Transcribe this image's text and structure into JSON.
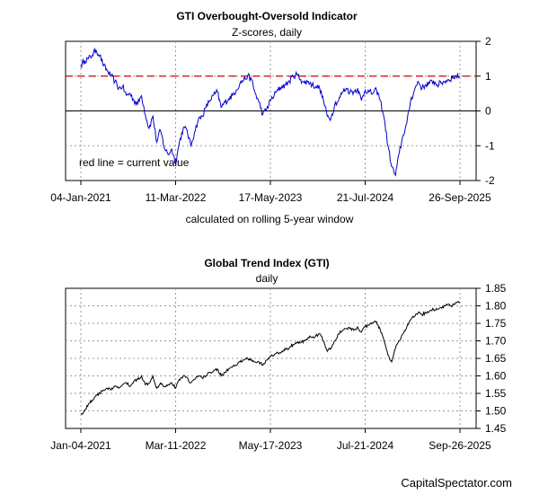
{
  "chart_data": [
    {
      "type": "line",
      "title": "GTI Overbought-Oversold Indicator",
      "subtitle": "Z-scores, daily",
      "xlabel": "calculated on rolling 5-year window",
      "ylabel": "",
      "ylim": [
        -2,
        2
      ],
      "yticks": [
        2,
        1,
        0,
        -1,
        -2
      ],
      "xticks": [
        "04-Jan-2021",
        "11-Mar-2022",
        "17-May-2023",
        "21-Jul-2024",
        "26-Sep-2025"
      ],
      "reference_line": {
        "value": 1,
        "color": "#e00000",
        "style": "dashed"
      },
      "zero_line": {
        "value": 0,
        "color": "#000000"
      },
      "annotation": "red line = current value",
      "grid": true,
      "series": [
        {
          "name": "GTI z-score",
          "color": "#0000cc",
          "x_frac": [
            0,
            0.01,
            0.02,
            0.03,
            0.04,
            0.05,
            0.06,
            0.07,
            0.08,
            0.09,
            0.1,
            0.11,
            0.12,
            0.13,
            0.14,
            0.15,
            0.16,
            0.17,
            0.18,
            0.19,
            0.2,
            0.21,
            0.22,
            0.23,
            0.24,
            0.25,
            0.26,
            0.27,
            0.28,
            0.29,
            0.3,
            0.31,
            0.32,
            0.33,
            0.34,
            0.35,
            0.36,
            0.37,
            0.38,
            0.39,
            0.4,
            0.41,
            0.42,
            0.43,
            0.44,
            0.45,
            0.46,
            0.47,
            0.48,
            0.49,
            0.5,
            0.51,
            0.52,
            0.53,
            0.54,
            0.55,
            0.56,
            0.57,
            0.58,
            0.59,
            0.6,
            0.61,
            0.62,
            0.63,
            0.64,
            0.65,
            0.66,
            0.67,
            0.68,
            0.69,
            0.7,
            0.71,
            0.72,
            0.73,
            0.74,
            0.75,
            0.76,
            0.77,
            0.78,
            0.79,
            0.8,
            0.81,
            0.82,
            0.83,
            0.84,
            0.85,
            0.86,
            0.87,
            0.88,
            0.89,
            0.9,
            0.91,
            0.92,
            0.93,
            0.94,
            0.95,
            0.96,
            0.97,
            0.98,
            0.99,
            1
          ],
          "values": [
            1.3,
            1.45,
            1.5,
            1.6,
            1.75,
            1.6,
            1.3,
            1.15,
            1.0,
            0.85,
            0.65,
            0.7,
            0.45,
            0.5,
            0.3,
            0.2,
            0.45,
            -0.1,
            -0.5,
            -0.15,
            -0.9,
            -0.55,
            -1.05,
            -1.25,
            -1.1,
            -1.5,
            -0.9,
            -0.5,
            -0.55,
            -1.0,
            -0.6,
            -0.25,
            -0.15,
            0.1,
            0.3,
            0.45,
            0.55,
            0.1,
            0.25,
            0.35,
            0.45,
            0.6,
            0.8,
            0.9,
            1.0,
            0.9,
            0.5,
            0.25,
            -0.1,
            0.05,
            0.3,
            0.45,
            0.6,
            0.7,
            0.75,
            0.85,
            1.0,
            1.05,
            0.9,
            0.8,
            0.85,
            0.75,
            0.7,
            0.65,
            0.3,
            -0.15,
            -0.2,
            0.2,
            0.3,
            0.55,
            0.65,
            0.55,
            0.55,
            0.65,
            0.3,
            0.6,
            0.55,
            0.5,
            0.6,
            0.3,
            -0.2,
            -1.0,
            -1.6,
            -1.85,
            -1.2,
            -0.7,
            -0.35,
            0.3,
            0.6,
            0.85,
            0.65,
            0.75,
            0.8,
            0.85,
            0.75,
            0.8,
            0.85,
            0.9,
            0.95,
            1.0,
            1.0
          ]
        }
      ]
    },
    {
      "type": "line",
      "title": "Global Trend Index (GTI)",
      "subtitle": "daily",
      "xlabel": "",
      "ylabel": "",
      "ylim": [
        1.45,
        1.85
      ],
      "yticks": [
        "1.85",
        "1.80",
        "1.75",
        "1.70",
        "1.65",
        "1.60",
        "1.55",
        "1.50",
        "1.45"
      ],
      "xticks": [
        "Jan-04-2021",
        "Mar-11-2022",
        "May-17-2023",
        "Jul-21-2024",
        "Sep-26-2025"
      ],
      "grid": true,
      "series": [
        {
          "name": "GTI",
          "color": "#000000",
          "x_frac": [
            0,
            0.01,
            0.02,
            0.03,
            0.04,
            0.05,
            0.06,
            0.07,
            0.08,
            0.09,
            0.1,
            0.11,
            0.12,
            0.13,
            0.14,
            0.15,
            0.16,
            0.17,
            0.18,
            0.19,
            0.2,
            0.21,
            0.22,
            0.23,
            0.24,
            0.25,
            0.26,
            0.27,
            0.28,
            0.29,
            0.3,
            0.31,
            0.32,
            0.33,
            0.34,
            0.35,
            0.36,
            0.37,
            0.38,
            0.39,
            0.4,
            0.41,
            0.42,
            0.43,
            0.44,
            0.45,
            0.46,
            0.47,
            0.48,
            0.49,
            0.5,
            0.51,
            0.52,
            0.53,
            0.54,
            0.55,
            0.56,
            0.57,
            0.58,
            0.59,
            0.6,
            0.61,
            0.62,
            0.63,
            0.64,
            0.65,
            0.66,
            0.67,
            0.68,
            0.69,
            0.7,
            0.71,
            0.72,
            0.73,
            0.74,
            0.75,
            0.76,
            0.77,
            0.78,
            0.79,
            0.8,
            0.81,
            0.82,
            0.83,
            0.84,
            0.85,
            0.86,
            0.87,
            0.88,
            0.89,
            0.9,
            0.91,
            0.92,
            0.93,
            0.94,
            0.95,
            0.96,
            0.97,
            0.98,
            0.99,
            1
          ],
          "values": [
            1.49,
            1.5,
            1.52,
            1.53,
            1.545,
            1.55,
            1.56,
            1.565,
            1.56,
            1.57,
            1.565,
            1.575,
            1.58,
            1.57,
            1.585,
            1.59,
            1.6,
            1.575,
            1.58,
            1.6,
            1.565,
            1.58,
            1.57,
            1.575,
            1.58,
            1.565,
            1.59,
            1.6,
            1.595,
            1.58,
            1.59,
            1.6,
            1.595,
            1.6,
            1.61,
            1.615,
            1.62,
            1.6,
            1.61,
            1.62,
            1.625,
            1.63,
            1.64,
            1.645,
            1.65,
            1.645,
            1.64,
            1.64,
            1.63,
            1.645,
            1.655,
            1.66,
            1.665,
            1.67,
            1.675,
            1.68,
            1.69,
            1.695,
            1.695,
            1.7,
            1.71,
            1.71,
            1.715,
            1.72,
            1.7,
            1.67,
            1.68,
            1.7,
            1.72,
            1.73,
            1.735,
            1.735,
            1.73,
            1.74,
            1.725,
            1.74,
            1.745,
            1.75,
            1.755,
            1.73,
            1.7,
            1.66,
            1.64,
            1.68,
            1.7,
            1.72,
            1.74,
            1.76,
            1.77,
            1.78,
            1.775,
            1.78,
            1.785,
            1.79,
            1.79,
            1.795,
            1.8,
            1.805,
            1.8,
            1.81,
            1.81
          ]
        }
      ]
    }
  ],
  "footer": "CapitalSpectator.com"
}
